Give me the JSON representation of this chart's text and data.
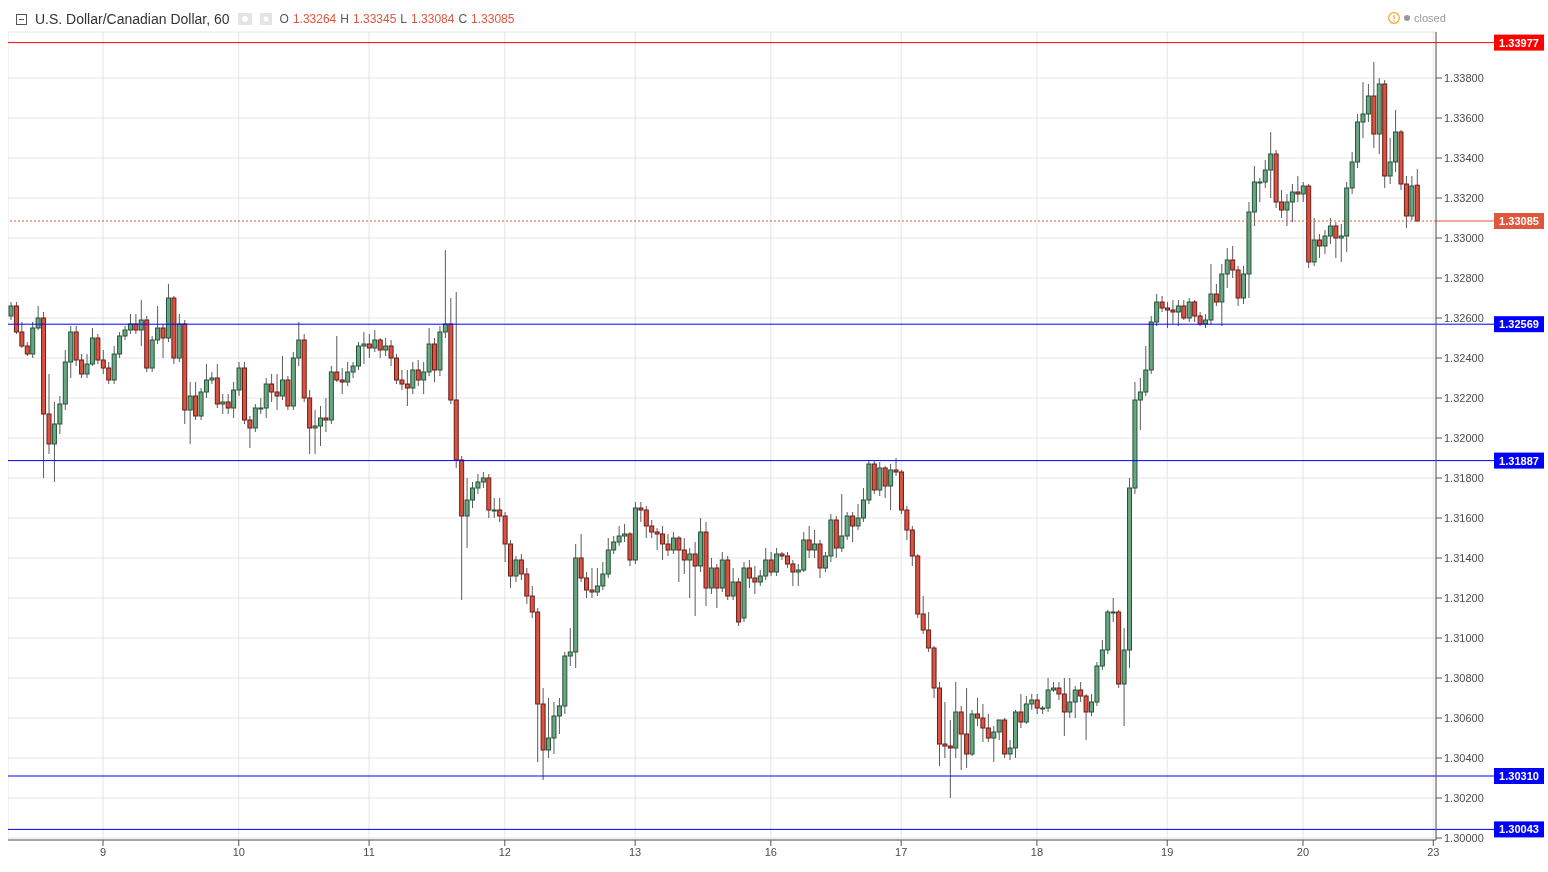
{
  "chart_data": {
    "type": "candlestick",
    "title": "U.S. Dollar/Canadian Dollar, 60",
    "annotations": [
      "O 1.33264 H 1.33345 L 1.33084 C 1.33085",
      "closed"
    ],
    "categories": [
      null,
      null,
      null,
      null,
      null,
      null,
      null,
      null,
      null,
      null,
      null,
      null,
      null,
      null,
      null,
      null,
      null,
      "9",
      null,
      null,
      null,
      null,
      null,
      null,
      null,
      null,
      null,
      null,
      null,
      null,
      null,
      null,
      null,
      null,
      null,
      null,
      null,
      null,
      null,
      null,
      null,
      null,
      "10",
      null,
      null,
      null,
      null,
      null,
      null,
      null,
      null,
      null,
      null,
      null,
      null,
      null,
      null,
      null,
      null,
      null,
      null,
      null,
      null,
      null,
      null,
      null,
      "11",
      null,
      null,
      null,
      null,
      null,
      null,
      null,
      null,
      null,
      null,
      null,
      null,
      null,
      null,
      null,
      null,
      null,
      null,
      null,
      null,
      null,
      null,
      null,
      null,
      "12",
      null,
      null,
      null,
      null,
      null,
      null,
      null,
      null,
      null,
      null,
      null,
      null,
      null,
      null,
      null,
      null,
      null,
      null,
      null,
      null,
      null,
      null,
      null,
      "13",
      null,
      null,
      null,
      null,
      null,
      null,
      null,
      null,
      null,
      null,
      null,
      null,
      null,
      null,
      null,
      null,
      null,
      null,
      null,
      null,
      null,
      null,
      null,
      null,
      "16",
      null,
      null,
      null,
      null,
      null,
      null,
      null,
      null,
      null,
      null,
      null,
      null,
      null,
      null,
      null,
      null,
      null,
      null,
      null,
      null,
      null,
      null,
      null,
      "17",
      null,
      null,
      null,
      null,
      null,
      null,
      null,
      null,
      null,
      null,
      null,
      null,
      null,
      null,
      null,
      null,
      null,
      null,
      null,
      null,
      null,
      null,
      null,
      null,
      "18",
      null,
      null,
      null,
      null,
      null,
      null,
      null,
      null,
      null,
      null,
      null,
      null,
      null,
      null,
      null,
      null,
      null,
      null,
      null,
      null,
      null,
      null,
      null,
      "19",
      null,
      null,
      null,
      null,
      null,
      null,
      null,
      null,
      null,
      null,
      null,
      null,
      null,
      null,
      null,
      null,
      null,
      null,
      null,
      null,
      null,
      null,
      null,
      null,
      "20",
      null,
      null,
      null,
      null,
      null,
      null,
      null,
      null,
      null,
      null,
      null,
      null,
      null,
      null,
      null,
      null,
      null,
      null,
      null,
      null,
      null,
      null,
      null,
      "23"
    ],
    "ohlc": [
      [
        1.3261,
        1.3268,
        1.3259,
        1.3266
      ],
      [
        1.3266,
        1.3268,
        1.3252,
        1.3253
      ],
      [
        1.3253,
        1.3258,
        1.3245,
        1.3246
      ],
      [
        1.3246,
        1.3248,
        1.3241,
        1.3242
      ],
      [
        1.3242,
        1.3258,
        1.324,
        1.3255
      ],
      [
        1.3255,
        1.3266,
        1.3254,
        1.326
      ],
      [
        1.326,
        1.3263,
        1.318,
        1.3212
      ],
      [
        1.3212,
        1.3232,
        1.3192,
        1.3197
      ],
      [
        1.3197,
        1.3218,
        1.3178,
        1.3207
      ],
      [
        1.3207,
        1.3221,
        1.3202,
        1.3217
      ],
      [
        1.3217,
        1.3244,
        1.3214,
        1.3238
      ],
      [
        1.3238,
        1.3256,
        1.323,
        1.3253
      ],
      [
        1.3253,
        1.3256,
        1.3236,
        1.3239
      ],
      [
        1.3239,
        1.3242,
        1.323,
        1.3232
      ],
      [
        1.3232,
        1.3242,
        1.323,
        1.3237
      ],
      [
        1.3237,
        1.3255,
        1.3236,
        1.325
      ],
      [
        1.325,
        1.3252,
        1.3237,
        1.3239
      ],
      [
        1.3239,
        1.3244,
        1.3232,
        1.3235
      ],
      [
        1.3235,
        1.3238,
        1.3227,
        1.3229
      ],
      [
        1.3229,
        1.3246,
        1.3227,
        1.3242
      ],
      [
        1.3242,
        1.3253,
        1.324,
        1.3251
      ],
      [
        1.3251,
        1.3256,
        1.3249,
        1.3254
      ],
      [
        1.3254,
        1.3262,
        1.3252,
        1.3257
      ],
      [
        1.3257,
        1.3262,
        1.3252,
        1.3254
      ],
      [
        1.3254,
        1.3269,
        1.3246,
        1.3259
      ],
      [
        1.3259,
        1.3261,
        1.3233,
        1.3235
      ],
      [
        1.3235,
        1.3251,
        1.3233,
        1.3249
      ],
      [
        1.3249,
        1.3266,
        1.3247,
        1.3255
      ],
      [
        1.3255,
        1.3257,
        1.324,
        1.325
      ],
      [
        1.325,
        1.3277,
        1.3248,
        1.327
      ],
      [
        1.327,
        1.3271,
        1.3237,
        1.324
      ],
      [
        1.324,
        1.3262,
        1.3238,
        1.3257
      ],
      [
        1.3257,
        1.3259,
        1.3207,
        1.3214
      ],
      [
        1.3214,
        1.3228,
        1.3197,
        1.3221
      ],
      [
        1.3221,
        1.3228,
        1.3209,
        1.3211
      ],
      [
        1.3211,
        1.3225,
        1.3209,
        1.3223
      ],
      [
        1.3223,
        1.3237,
        1.322,
        1.3229
      ],
      [
        1.3229,
        1.3233,
        1.3227,
        1.323
      ],
      [
        1.323,
        1.3237,
        1.3215,
        1.3217
      ],
      [
        1.3217,
        1.3222,
        1.3212,
        1.3218
      ],
      [
        1.3218,
        1.3222,
        1.3212,
        1.3215
      ],
      [
        1.3215,
        1.3228,
        1.321,
        1.3224
      ],
      [
        1.3224,
        1.3238,
        1.3221,
        1.3235
      ],
      [
        1.3235,
        1.3238,
        1.3207,
        1.3209
      ],
      [
        1.3209,
        1.3211,
        1.3195,
        1.3205
      ],
      [
        1.3205,
        1.3217,
        1.3203,
        1.3215
      ],
      [
        1.3215,
        1.322,
        1.3212,
        1.3215
      ],
      [
        1.3215,
        1.323,
        1.321,
        1.3227
      ],
      [
        1.3227,
        1.3232,
        1.3218,
        1.3223
      ],
      [
        1.3223,
        1.3232,
        1.3214,
        1.3221
      ],
      [
        1.3221,
        1.3241,
        1.3219,
        1.3229
      ],
      [
        1.3229,
        1.3231,
        1.3214,
        1.3216
      ],
      [
        1.3216,
        1.3243,
        1.3214,
        1.324
      ],
      [
        1.324,
        1.3258,
        1.3236,
        1.3249
      ],
      [
        1.3249,
        1.3252,
        1.3218,
        1.322
      ],
      [
        1.322,
        1.3224,
        1.3192,
        1.3205
      ],
      [
        1.3205,
        1.3214,
        1.3192,
        1.3206
      ],
      [
        1.3206,
        1.3216,
        1.3196,
        1.321
      ],
      [
        1.321,
        1.322,
        1.3203,
        1.3209
      ],
      [
        1.3209,
        1.3236,
        1.3207,
        1.3233
      ],
      [
        1.3233,
        1.3251,
        1.3228,
        1.3229
      ],
      [
        1.3229,
        1.3235,
        1.3222,
        1.3228
      ],
      [
        1.3228,
        1.3238,
        1.3226,
        1.3233
      ],
      [
        1.3233,
        1.3238,
        1.323,
        1.3236
      ],
      [
        1.3236,
        1.3248,
        1.3234,
        1.3246
      ],
      [
        1.3246,
        1.3253,
        1.3237,
        1.3247
      ],
      [
        1.3247,
        1.3252,
        1.324,
        1.3245
      ],
      [
        1.3245,
        1.3254,
        1.3243,
        1.3249
      ],
      [
        1.3249,
        1.325,
        1.324,
        1.3244
      ],
      [
        1.3244,
        1.325,
        1.3241,
        1.3246
      ],
      [
        1.3246,
        1.3249,
        1.3236,
        1.324
      ],
      [
        1.324,
        1.3242,
        1.3227,
        1.3229
      ],
      [
        1.3229,
        1.3234,
        1.3224,
        1.3227
      ],
      [
        1.3227,
        1.3234,
        1.3216,
        1.3225
      ],
      [
        1.3225,
        1.3238,
        1.3222,
        1.3234
      ],
      [
        1.3234,
        1.3239,
        1.3226,
        1.3229
      ],
      [
        1.3229,
        1.3238,
        1.3222,
        1.3233
      ],
      [
        1.3233,
        1.3255,
        1.3231,
        1.3247
      ],
      [
        1.3247,
        1.325,
        1.3228,
        1.3234
      ],
      [
        1.3234,
        1.3256,
        1.3231,
        1.3253
      ],
      [
        1.3253,
        1.3294,
        1.325,
        1.3257
      ],
      [
        1.3257,
        1.327,
        1.3217,
        1.3219
      ],
      [
        1.3219,
        1.3273,
        1.3185,
        1.3189
      ],
      [
        1.3189,
        1.3191,
        1.3119,
        1.3161
      ],
      [
        1.3161,
        1.318,
        1.3145,
        1.3169
      ],
      [
        1.3169,
        1.3178,
        1.3165,
        1.3175
      ],
      [
        1.3175,
        1.3182,
        1.3172,
        1.3178
      ],
      [
        1.3178,
        1.3183,
        1.3175,
        1.318
      ],
      [
        1.318,
        1.3182,
        1.316,
        1.3164
      ],
      [
        1.3164,
        1.317,
        1.316,
        1.3164
      ],
      [
        1.3164,
        1.317,
        1.3158,
        1.3161
      ],
      [
        1.3161,
        1.3163,
        1.3138,
        1.3147
      ],
      [
        1.3147,
        1.3149,
        1.3125,
        1.3131
      ],
      [
        1.3131,
        1.3141,
        1.3128,
        1.3139
      ],
      [
        1.3139,
        1.3142,
        1.3129,
        1.3132
      ],
      [
        1.3132,
        1.3135,
        1.3117,
        1.3121
      ],
      [
        1.3121,
        1.3126,
        1.311,
        1.3113
      ],
      [
        1.3113,
        1.3115,
        1.3038,
        1.3067
      ],
      [
        1.3067,
        1.3075,
        1.3029,
        1.3044
      ],
      [
        1.3044,
        1.307,
        1.304,
        1.305
      ],
      [
        1.305,
        1.3068,
        1.3042,
        1.3061
      ],
      [
        1.3061,
        1.307,
        1.3052,
        1.3066
      ],
      [
        1.3066,
        1.3093,
        1.3062,
        1.3091
      ],
      [
        1.3091,
        1.3105,
        1.3086,
        1.3093
      ],
      [
        1.3093,
        1.3147,
        1.3085,
        1.314
      ],
      [
        1.314,
        1.3152,
        1.3128,
        1.313
      ],
      [
        1.313,
        1.3133,
        1.312,
        1.3124
      ],
      [
        1.3124,
        1.3135,
        1.312,
        1.3123
      ],
      [
        1.3123,
        1.3135,
        1.3121,
        1.3126
      ],
      [
        1.3126,
        1.3138,
        1.3124,
        1.3132
      ],
      [
        1.3132,
        1.315,
        1.313,
        1.3144
      ],
      [
        1.3144,
        1.3151,
        1.3142,
        1.3148
      ],
      [
        1.3148,
        1.3156,
        1.3146,
        1.3151
      ],
      [
        1.3151,
        1.3157,
        1.3148,
        1.3152
      ],
      [
        1.3152,
        1.3153,
        1.3136,
        1.3139
      ],
      [
        1.3139,
        1.3168,
        1.3137,
        1.3165
      ],
      [
        1.3165,
        1.3168,
        1.3158,
        1.3164
      ],
      [
        1.3164,
        1.3166,
        1.315,
        1.3156
      ],
      [
        1.3156,
        1.3159,
        1.315,
        1.3153
      ],
      [
        1.3153,
        1.3155,
        1.3144,
        1.3152
      ],
      [
        1.3152,
        1.3156,
        1.3139,
        1.3147
      ],
      [
        1.3147,
        1.3152,
        1.3141,
        1.3144
      ],
      [
        1.3144,
        1.3153,
        1.3142,
        1.315
      ],
      [
        1.315,
        1.3151,
        1.3128,
        1.3144
      ],
      [
        1.3144,
        1.315,
        1.3132,
        1.3139
      ],
      [
        1.3139,
        1.3145,
        1.312,
        1.3142
      ],
      [
        1.3142,
        1.3148,
        1.3111,
        1.3136
      ],
      [
        1.3136,
        1.316,
        1.3133,
        1.3153
      ],
      [
        1.3153,
        1.3158,
        1.3116,
        1.3125
      ],
      [
        1.3125,
        1.314,
        1.3122,
        1.3135
      ],
      [
        1.3135,
        1.3137,
        1.3115,
        1.3125
      ],
      [
        1.3125,
        1.3143,
        1.3123,
        1.3139
      ],
      [
        1.3139,
        1.3141,
        1.3119,
        1.3121
      ],
      [
        1.3121,
        1.3135,
        1.3119,
        1.3128
      ],
      [
        1.3128,
        1.313,
        1.3106,
        1.3108
      ],
      [
        1.311,
        1.3138,
        1.3108,
        1.3135
      ],
      [
        1.3135,
        1.3139,
        1.3125,
        1.313
      ],
      [
        1.313,
        1.3136,
        1.3122,
        1.3128
      ],
      [
        1.3128,
        1.3134,
        1.3126,
        1.3131
      ],
      [
        1.3131,
        1.3145,
        1.3129,
        1.3139
      ],
      [
        1.3139,
        1.3143,
        1.3131,
        1.3133
      ],
      [
        1.3133,
        1.3145,
        1.3131,
        1.3142
      ],
      [
        1.3142,
        1.3143,
        1.3139,
        1.3141
      ],
      [
        1.3141,
        1.3143,
        1.3135,
        1.3137
      ],
      [
        1.3137,
        1.3139,
        1.3126,
        1.3133
      ],
      [
        1.3133,
        1.3137,
        1.3126,
        1.3134
      ],
      [
        1.3134,
        1.3153,
        1.3133,
        1.3149
      ],
      [
        1.3149,
        1.3156,
        1.314,
        1.3144
      ],
      [
        1.3144,
        1.3154,
        1.314,
        1.3147
      ],
      [
        1.3147,
        1.3149,
        1.313,
        1.3135
      ],
      [
        1.3135,
        1.3143,
        1.3133,
        1.3141
      ],
      [
        1.3141,
        1.3162,
        1.3138,
        1.3159
      ],
      [
        1.3159,
        1.3161,
        1.314,
        1.3145
      ],
      [
        1.3145,
        1.3172,
        1.3143,
        1.3151
      ],
      [
        1.3151,
        1.3163,
        1.3149,
        1.3161
      ],
      [
        1.3161,
        1.3163,
        1.3148,
        1.3156
      ],
      [
        1.3156,
        1.3167,
        1.3154,
        1.316
      ],
      [
        1.316,
        1.3175,
        1.3158,
        1.3169
      ],
      [
        1.3169,
        1.3189,
        1.3167,
        1.3187
      ],
      [
        1.3187,
        1.3189,
        1.3172,
        1.3174
      ],
      [
        1.3174,
        1.3188,
        1.3171,
        1.3185
      ],
      [
        1.3185,
        1.3186,
        1.317,
        1.3176
      ],
      [
        1.3176,
        1.3187,
        1.3164,
        1.3184
      ],
      [
        1.3184,
        1.319,
        1.3181,
        1.3183
      ],
      [
        1.3183,
        1.3184,
        1.3162,
        1.3164
      ],
      [
        1.3164,
        1.3166,
        1.3149,
        1.3154
      ],
      [
        1.3154,
        1.3156,
        1.3136,
        1.3141
      ],
      [
        1.3141,
        1.3142,
        1.311,
        1.3112
      ],
      [
        1.3112,
        1.3121,
        1.3102,
        1.3104
      ],
      [
        1.3104,
        1.3113,
        1.3093,
        1.3095
      ],
      [
        1.3095,
        1.3096,
        1.307,
        1.3075
      ],
      [
        1.3075,
        1.3078,
        1.3036,
        1.3047
      ],
      [
        1.3047,
        1.3068,
        1.304,
        1.3046
      ],
      [
        1.3046,
        1.3059,
        1.302,
        1.3045
      ],
      [
        1.3045,
        1.3078,
        1.304,
        1.3063
      ],
      [
        1.3063,
        1.3066,
        1.3034,
        1.3052
      ],
      [
        1.3052,
        1.3075,
        1.3035,
        1.3042
      ],
      [
        1.3042,
        1.3064,
        1.3041,
        1.3062
      ],
      [
        1.3062,
        1.307,
        1.3056,
        1.306
      ],
      [
        1.306,
        1.3067,
        1.3048,
        1.3055
      ],
      [
        1.3055,
        1.3062,
        1.3048,
        1.305
      ],
      [
        1.305,
        1.3056,
        1.3038,
        1.3053
      ],
      [
        1.3053,
        1.3059,
        1.3049,
        1.3059
      ],
      [
        1.3059,
        1.306,
        1.304,
        1.3042
      ],
      [
        1.3042,
        1.3049,
        1.3039,
        1.3045
      ],
      [
        1.3045,
        1.3064,
        1.304,
        1.3063
      ],
      [
        1.3063,
        1.3072,
        1.3055,
        1.3058
      ],
      [
        1.3058,
        1.3071,
        1.3057,
        1.3067
      ],
      [
        1.3067,
        1.3072,
        1.3064,
        1.3069
      ],
      [
        1.3069,
        1.3072,
        1.3062,
        1.3065
      ],
      [
        1.3065,
        1.3066,
        1.3062,
        1.3065
      ],
      [
        1.3065,
        1.308,
        1.3063,
        1.3074
      ],
      [
        1.3074,
        1.3078,
        1.3073,
        1.3075
      ],
      [
        1.3075,
        1.3078,
        1.3069,
        1.3072
      ],
      [
        1.3072,
        1.308,
        1.3051,
        1.3063
      ],
      [
        1.3063,
        1.308,
        1.306,
        1.3068
      ],
      [
        1.3068,
        1.3076,
        1.306,
        1.3074
      ],
      [
        1.3074,
        1.3078,
        1.3068,
        1.3071
      ],
      [
        1.3071,
        1.3072,
        1.3049,
        1.3063
      ],
      [
        1.3063,
        1.3072,
        1.3061,
        1.3068
      ],
      [
        1.3068,
        1.3088,
        1.3066,
        1.3086
      ],
      [
        1.3086,
        1.3099,
        1.3084,
        1.3094
      ],
      [
        1.3094,
        1.3114,
        1.3092,
        1.3113
      ],
      [
        1.3113,
        1.312,
        1.3108,
        1.3113
      ],
      [
        1.3113,
        1.3114,
        1.3075,
        1.3077
      ],
      [
        1.3077,
        1.3105,
        1.3056,
        1.3094
      ],
      [
        1.3094,
        1.318,
        1.3085,
        1.3175
      ],
      [
        1.3175,
        1.3228,
        1.3172,
        1.3219
      ],
      [
        1.3219,
        1.323,
        1.3204,
        1.3223
      ],
      [
        1.3223,
        1.3246,
        1.3221,
        1.3234
      ],
      [
        1.3234,
        1.3261,
        1.3232,
        1.3258
      ],
      [
        1.3258,
        1.3272,
        1.3256,
        1.3268
      ],
      [
        1.3268,
        1.3271,
        1.3263,
        1.3265
      ],
      [
        1.3265,
        1.3268,
        1.3255,
        1.3264
      ],
      [
        1.3264,
        1.3269,
        1.3257,
        1.3263
      ],
      [
        1.3263,
        1.3269,
        1.3256,
        1.3266
      ],
      [
        1.3266,
        1.3269,
        1.3259,
        1.326
      ],
      [
        1.326,
        1.327,
        1.3258,
        1.3268
      ],
      [
        1.3268,
        1.3269,
        1.3258,
        1.3261
      ],
      [
        1.3261,
        1.3263,
        1.3256,
        1.3257
      ],
      [
        1.3257,
        1.3262,
        1.3255,
        1.3259
      ],
      [
        1.3259,
        1.3287,
        1.3257,
        1.3272
      ],
      [
        1.3272,
        1.3277,
        1.3266,
        1.3268
      ],
      [
        1.3268,
        1.3287,
        1.3256,
        1.3282
      ],
      [
        1.3282,
        1.3295,
        1.3275,
        1.3289
      ],
      [
        1.3289,
        1.3296,
        1.328,
        1.3284
      ],
      [
        1.3284,
        1.3286,
        1.3266,
        1.327
      ],
      [
        1.327,
        1.3286,
        1.3267,
        1.3282
      ],
      [
        1.3282,
        1.3318,
        1.327,
        1.3313
      ],
      [
        1.3313,
        1.3336,
        1.3306,
        1.3328
      ],
      [
        1.3328,
        1.333,
        1.3318,
        1.3328
      ],
      [
        1.3328,
        1.3339,
        1.3325,
        1.3334
      ],
      [
        1.3334,
        1.3353,
        1.332,
        1.3342
      ],
      [
        1.3342,
        1.3344,
        1.3315,
        1.3318
      ],
      [
        1.3318,
        1.3324,
        1.331,
        1.3314
      ],
      [
        1.3314,
        1.3322,
        1.3306,
        1.3318
      ],
      [
        1.3318,
        1.3327,
        1.3308,
        1.3323
      ],
      [
        1.3323,
        1.3331,
        1.3318,
        1.3322
      ],
      [
        1.3322,
        1.3328,
        1.3318,
        1.3326
      ],
      [
        1.3326,
        1.3327,
        1.3285,
        1.3288
      ],
      [
        1.3288,
        1.331,
        1.3286,
        1.3299
      ],
      [
        1.3299,
        1.3302,
        1.329,
        1.3296
      ],
      [
        1.3296,
        1.3304,
        1.3292,
        1.3301
      ],
      [
        1.3301,
        1.331,
        1.3297,
        1.3306
      ],
      [
        1.3306,
        1.3308,
        1.329,
        1.33
      ],
      [
        1.33,
        1.3307,
        1.3288,
        1.3301
      ],
      [
        1.3301,
        1.3328,
        1.3293,
        1.3325
      ],
      [
        1.3325,
        1.3343,
        1.3322,
        1.3338
      ],
      [
        1.3338,
        1.3362,
        1.3335,
        1.3358
      ],
      [
        1.3358,
        1.3378,
        1.335,
        1.3362
      ],
      [
        1.3362,
        1.3377,
        1.3358,
        1.3371
      ],
      [
        1.3371,
        1.3388,
        1.3345,
        1.3352
      ],
      [
        1.3352,
        1.338,
        1.3342,
        1.3377
      ],
      [
        1.3377,
        1.3379,
        1.3325,
        1.3331
      ],
      [
        1.3331,
        1.335,
        1.3327,
        1.3338
      ],
      [
        1.3338,
        1.3364,
        1.3333,
        1.3353
      ],
      [
        1.3353,
        1.3354,
        1.3324,
        1.3327
      ],
      [
        1.3327,
        1.3331,
        1.3305,
        1.3311
      ],
      [
        1.3311,
        1.3331,
        1.3309,
        1.3326
      ],
      [
        1.33264,
        1.33345,
        1.33084,
        1.33085
      ],
      null,
      null,
      null
    ],
    "ylim": [
      1.2999,
      1.3403
    ],
    "yticks": [
      {
        "value": 1.3,
        "label": "1.30000"
      },
      {
        "value": 1.302,
        "label": "1.30200"
      },
      {
        "value": 1.304,
        "label": "1.30400"
      },
      {
        "value": 1.306,
        "label": "1.30600"
      },
      {
        "value": 1.308,
        "label": "1.30800"
      },
      {
        "value": 1.31,
        "label": "1.31000"
      },
      {
        "value": 1.312,
        "label": "1.31200"
      },
      {
        "value": 1.314,
        "label": "1.31400"
      },
      {
        "value": 1.316,
        "label": "1.31600"
      },
      {
        "value": 1.318,
        "label": "1.31800"
      },
      {
        "value": 1.32,
        "label": "1.32000"
      },
      {
        "value": 1.322,
        "label": "1.32200"
      },
      {
        "value": 1.324,
        "label": "1.32400"
      },
      {
        "value": 1.326,
        "label": "1.32600"
      },
      {
        "value": 1.328,
        "label": "1.32800"
      },
      {
        "value": 1.33,
        "label": "1.33000"
      },
      {
        "value": 1.332,
        "label": "1.33200"
      },
      {
        "value": 1.334,
        "label": "1.33400"
      },
      {
        "value": 1.336,
        "label": "1.33600"
      },
      {
        "value": 1.338,
        "label": "1.33800"
      }
    ],
    "ref_lines": [
      {
        "axis": "y",
        "value": 1.33977,
        "label": "1.33977",
        "color": "#ff0000",
        "line_style": "solid"
      },
      {
        "axis": "y",
        "value": 1.33085,
        "label": "1.33085",
        "color": "#e0573f",
        "line_style": "dotted"
      },
      {
        "axis": "y",
        "value": 1.32569,
        "label": "1.32569",
        "color": "#0000ff",
        "line_style": "solid"
      },
      {
        "axis": "y",
        "value": 1.31887,
        "label": "1.31887",
        "color": "#0000ff",
        "line_style": "solid"
      },
      {
        "axis": "y",
        "value": 1.3031,
        "label": "1.30310",
        "color": "#0000ff",
        "line_style": "solid"
      },
      {
        "axis": "y",
        "value": 1.30043,
        "label": "1.30043",
        "color": "#0000ff",
        "line_style": "solid"
      }
    ],
    "grid": true
  }
}
